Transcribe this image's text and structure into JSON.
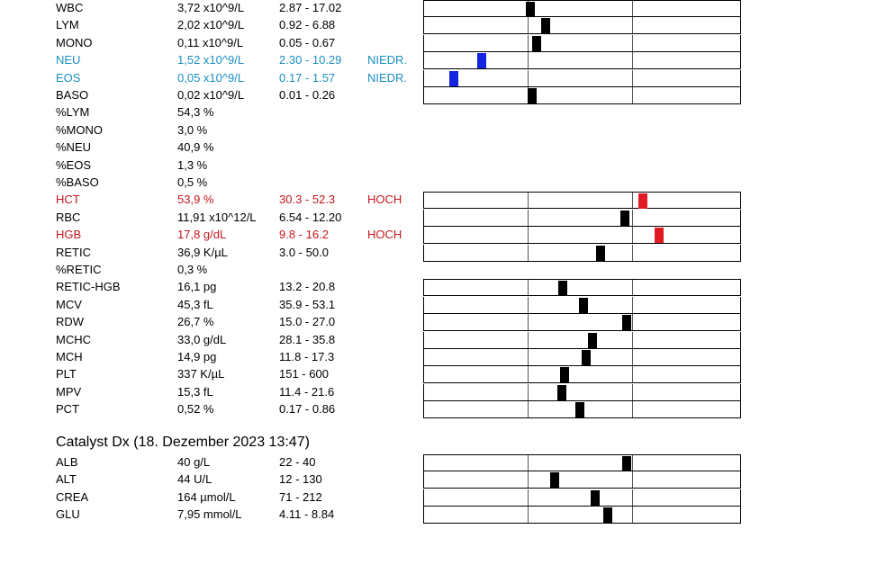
{
  "scale": {
    "description": "gauge fraction: 0 = left edge, 1 = right edge; reference interval spans the middle third (0.333-0.667)"
  },
  "hematology": [
    {
      "name": "WBC",
      "value": "3,72 x10^9/L",
      "ref": "2.87 - 17.02",
      "flag": "",
      "status": "normal",
      "gauge": 0.336
    },
    {
      "name": "LYM",
      "value": "2,02 x10^9/L",
      "ref": "0.92 - 6.88",
      "flag": "",
      "status": "normal",
      "gauge": 0.387
    },
    {
      "name": "MONO",
      "value": "0,11 x10^9/L",
      "ref": "0.05 - 0.67",
      "flag": "",
      "status": "normal",
      "gauge": 0.356
    },
    {
      "name": "NEU",
      "value": "1,52 x10^9/L",
      "ref": "2.30 - 10.29",
      "flag": "NIEDR.",
      "status": "low",
      "gauge": 0.184
    },
    {
      "name": "EOS",
      "value": "0,05 x10^9/L",
      "ref": "0.17 - 1.57",
      "flag": "NIEDR.",
      "status": "low",
      "gauge": 0.094
    },
    {
      "name": "BASO",
      "value": "0,02 x10^9/L",
      "ref": "0.01 - 0.26",
      "flag": "",
      "status": "normal",
      "gauge": 0.344
    },
    {
      "name": "%LYM",
      "value": "54,3 %",
      "ref": "",
      "flag": "",
      "status": "normal",
      "gauge": null
    },
    {
      "name": "%MONO",
      "value": "3,0 %",
      "ref": "",
      "flag": "",
      "status": "normal",
      "gauge": null
    },
    {
      "name": "%NEU",
      "value": "40,9 %",
      "ref": "",
      "flag": "",
      "status": "normal",
      "gauge": null
    },
    {
      "name": "%EOS",
      "value": "1,3 %",
      "ref": "",
      "flag": "",
      "status": "normal",
      "gauge": null
    },
    {
      "name": "%BASO",
      "value": "0,5 %",
      "ref": "",
      "flag": "",
      "status": "normal",
      "gauge": null
    },
    {
      "name": "HCT",
      "value": "53,9 %",
      "ref": "30.3 - 52.3",
      "flag": "HOCH",
      "status": "high",
      "gauge": 0.694
    },
    {
      "name": "RBC",
      "value": "11,91 x10^12/L",
      "ref": "6.54 - 12.20",
      "flag": "",
      "status": "normal",
      "gauge": 0.637
    },
    {
      "name": "HGB",
      "value": "17,8 g/dL",
      "ref": "9.8 - 16.2",
      "flag": "HOCH",
      "status": "high",
      "gauge": 0.745
    },
    {
      "name": "RETIC",
      "value": "36,9 K/µL",
      "ref": "3.0 - 50.0",
      "flag": "",
      "status": "normal",
      "gauge": 0.561
    },
    {
      "name": "%RETIC",
      "value": "0,3 %",
      "ref": "",
      "flag": "",
      "status": "normal",
      "gauge": null
    },
    {
      "name": "RETIC-HGB",
      "value": "16,1 pg",
      "ref": "13.2 - 20.8",
      "flag": "",
      "status": "normal",
      "gauge": 0.44
    },
    {
      "name": "MCV",
      "value": "45,3 fL",
      "ref": "35.9 - 53.1",
      "flag": "",
      "status": "normal",
      "gauge": 0.507
    },
    {
      "name": "RDW",
      "value": "26,7 %",
      "ref": "15.0 - 27.0",
      "flag": "",
      "status": "normal",
      "gauge": 0.643
    },
    {
      "name": "MCHC",
      "value": "33,0 g/dL",
      "ref": "28.1 - 35.8",
      "flag": "",
      "status": "normal",
      "gauge": 0.535
    },
    {
      "name": "MCH",
      "value": "14,9 pg",
      "ref": "11.8 - 17.3",
      "flag": "",
      "status": "normal",
      "gauge": 0.513
    },
    {
      "name": "PLT",
      "value": "337 K/µL",
      "ref": "151 - 600",
      "flag": "",
      "status": "normal",
      "gauge": 0.445
    },
    {
      "name": "MPV",
      "value": "15,3 fL",
      "ref": "11.4 - 21.6",
      "flag": "",
      "status": "normal",
      "gauge": 0.436
    },
    {
      "name": "PCT",
      "value": "0,52 %",
      "ref": "0.17 - 0.86",
      "flag": "",
      "status": "normal",
      "gauge": 0.493
    }
  ],
  "chemistry": {
    "title": "Catalyst Dx (18. Dezember 2023 13:47)",
    "rows": [
      {
        "name": "ALB",
        "value": "40 g/L",
        "ref": "22 - 40",
        "flag": "",
        "status": "normal",
        "gauge": 0.642
      },
      {
        "name": "ALT",
        "value": "44 U/L",
        "ref": "12 - 130",
        "flag": "",
        "status": "normal",
        "gauge": 0.414
      },
      {
        "name": "CREA",
        "value": "164 µmol/L",
        "ref": "71 - 212",
        "flag": "",
        "status": "normal",
        "gauge": 0.544
      },
      {
        "name": "GLU",
        "value": "7,95 mmol/L",
        "ref": "4.11 - 8.84",
        "flag": "",
        "status": "normal",
        "gauge": 0.584
      }
    ]
  },
  "colors": {
    "low": "#1a8fc2",
    "high": "#c4161c",
    "marker_low": "#1524e0",
    "marker_high": "#e11b22",
    "marker_normal": "#000000"
  }
}
